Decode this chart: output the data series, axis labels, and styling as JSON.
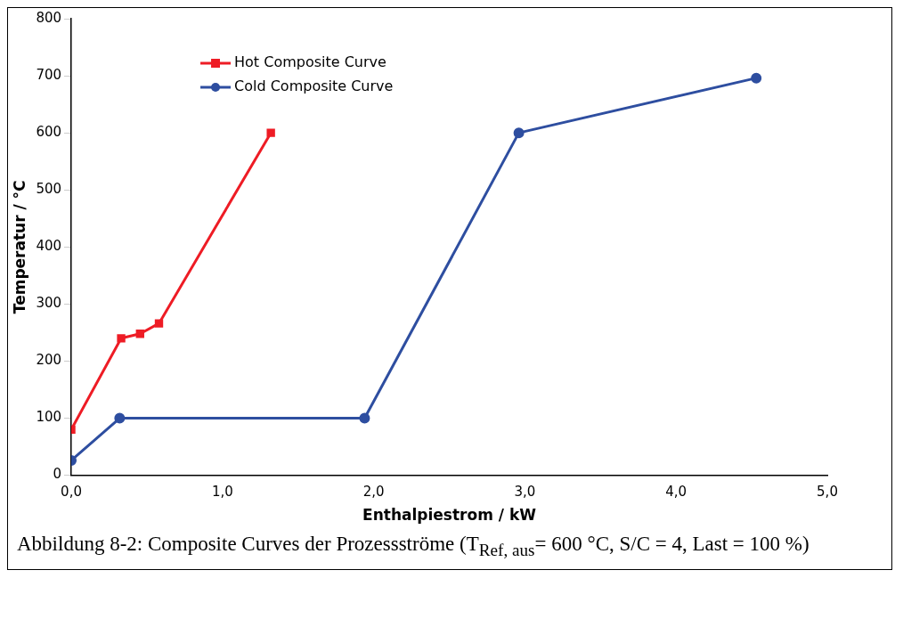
{
  "chart_data": {
    "type": "line",
    "xlabel": "Enthalpiestrom / kW",
    "ylabel": "Temperatur / °C",
    "xlim": [
      0,
      5
    ],
    "xticks": [
      {
        "value": 0,
        "label": "0,0"
      },
      {
        "value": 1,
        "label": "1,0"
      },
      {
        "value": 2,
        "label": "2,0"
      },
      {
        "value": 3,
        "label": "3,0"
      },
      {
        "value": 4,
        "label": "4,0"
      },
      {
        "value": 5,
        "label": "5,0"
      }
    ],
    "ylim": [
      0,
      800
    ],
    "yticks": [
      0,
      100,
      200,
      300,
      400,
      500,
      600,
      700,
      800
    ],
    "grid": false,
    "legend": "top left",
    "series": [
      {
        "name": "Hot Composite Curve",
        "color": "#ee1c25",
        "marker": "square",
        "x": [
          0,
          0.33,
          0.455,
          0.58,
          1.32
        ],
        "values": [
          80,
          240,
          248,
          266,
          600
        ]
      },
      {
        "name": "Cold Composite Curve",
        "color": "#2e4ea0",
        "marker": "circle",
        "x": [
          0,
          0.32,
          1.94,
          2.96,
          4.53
        ],
        "values": [
          26,
          100,
          100,
          600,
          696
        ]
      }
    ],
    "annotations": [
      "Abbildung 8-2: Composite Curves der Prozessströme (T$_{Ref, aus}$= 600 °C, S/C = 4, Last = 100 %)"
    ]
  }
}
